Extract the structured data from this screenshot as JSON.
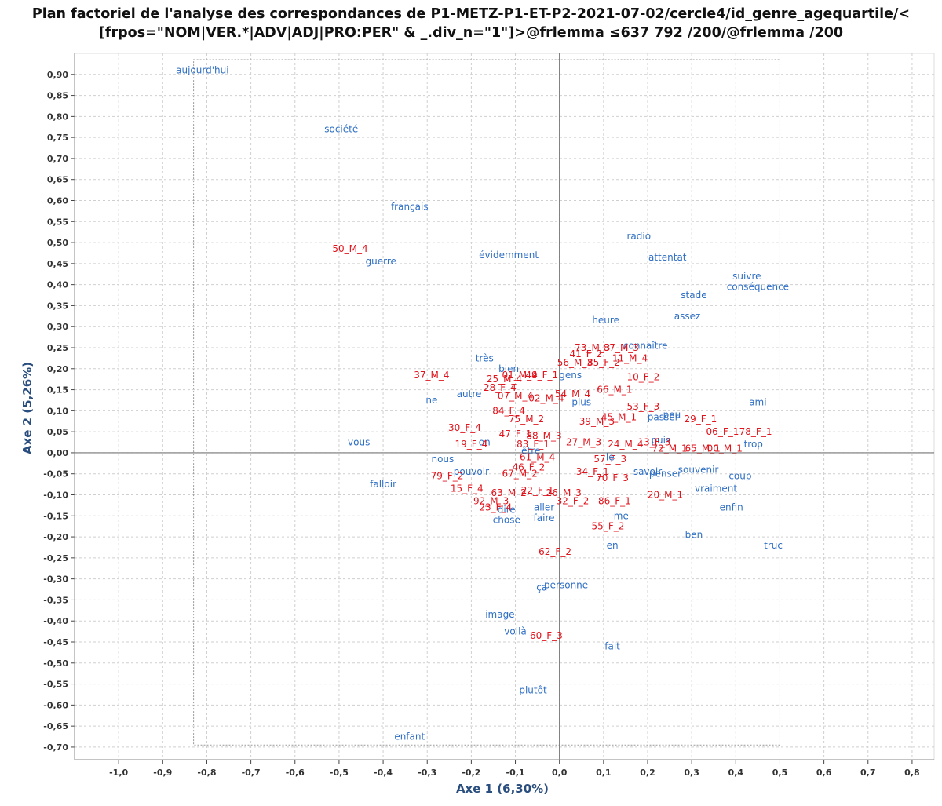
{
  "title": {
    "line1": "Plan factoriel de l'analyse des correspondances de P1-METZ-P1-ET-P2-2021-07-02/cercle4/id_genre_agequartile/<",
    "line2": "[frpos=\"NOM|VER.*|ADV|ADJ|PRO:PER\" & _.div_n=\"1\"]>@frlemma ≤637 792 /200/@frlemma /200"
  },
  "colors": {
    "words": "#2f6fc4",
    "rows": "#e0141c",
    "axis_title": "#2a4e7e",
    "grid": "#cfcfcf"
  },
  "chart_data": {
    "type": "scatter",
    "title": "Plan factoriel de l'analyse des correspondances de P1-METZ-P1-ET-P2-2021-07-02/cercle4/id_genre_agequartile/<[frpos=\"NOM|VER.*|ADV|ADJ|PRO:PER\" & _.div_n=\"1\"]>@frlemma ≤637 792 /200/@frlemma /200",
    "xlabel": "Axe 1 (6,30%)",
    "ylabel": "Axe 2 (5,26%)",
    "xlim": [
      -1.1,
      0.85
    ],
    "ylim": [
      -0.73,
      0.95
    ],
    "grid": true,
    "x_ticks": [
      "-1,0",
      "-0,9",
      "-0,8",
      "-0,7",
      "-0,6",
      "-0,5",
      "-0,4",
      "-0,3",
      "-0,2",
      "-0,1",
      "0,0",
      "0,1",
      "0,2",
      "0,3",
      "0,4",
      "0,5",
      "0,6",
      "0,7",
      "0,8"
    ],
    "y_ticks": [
      "0,90",
      "0,85",
      "0,80",
      "0,75",
      "0,70",
      "0,65",
      "0,60",
      "0,55",
      "0,50",
      "0,45",
      "0,40",
      "0,35",
      "0,30",
      "0,25",
      "0,20",
      "0,15",
      "0,10",
      "0,05",
      "0,00",
      "-0,05",
      "-0,10",
      "-0,15",
      "-0,20",
      "-0,25",
      "-0,30",
      "-0,35",
      "-0,40",
      "-0,45",
      "-0,50",
      "-0,55",
      "-0,60",
      "-0,65",
      "-0,70"
    ],
    "frame_rect": {
      "x_min": -0.83,
      "x_max": 0.5,
      "y_min": -0.695,
      "y_max": 0.935
    },
    "series": [
      {
        "name": "lemmas",
        "points": [
          {
            "label": "aujourd'hui",
            "x": -0.81,
            "y": 0.91
          },
          {
            "label": "société",
            "x": -0.495,
            "y": 0.77
          },
          {
            "label": "français",
            "x": -0.34,
            "y": 0.585
          },
          {
            "label": "guerre",
            "x": -0.405,
            "y": 0.455
          },
          {
            "label": "évidemment",
            "x": -0.115,
            "y": 0.47
          },
          {
            "label": "radio",
            "x": 0.18,
            "y": 0.515
          },
          {
            "label": "attentat",
            "x": 0.245,
            "y": 0.465
          },
          {
            "label": "suivre",
            "x": 0.425,
            "y": 0.42
          },
          {
            "label": "conséquence",
            "x": 0.45,
            "y": 0.395
          },
          {
            "label": "stade",
            "x": 0.305,
            "y": 0.375
          },
          {
            "label": "assez",
            "x": 0.29,
            "y": 0.325
          },
          {
            "label": "heure",
            "x": 0.105,
            "y": 0.315
          },
          {
            "label": "connaître",
            "x": 0.195,
            "y": 0.255
          },
          {
            "label": "très",
            "x": -0.17,
            "y": 0.225
          },
          {
            "label": "bien",
            "x": -0.115,
            "y": 0.2
          },
          {
            "label": "gens",
            "x": 0.025,
            "y": 0.185
          },
          {
            "label": "autre",
            "x": -0.205,
            "y": 0.14
          },
          {
            "label": "ne",
            "x": -0.29,
            "y": 0.125
          },
          {
            "label": "plus",
            "x": 0.05,
            "y": 0.12
          },
          {
            "label": "ami",
            "x": 0.45,
            "y": 0.12
          },
          {
            "label": "peu",
            "x": 0.255,
            "y": 0.09
          },
          {
            "label": "passer",
            "x": 0.235,
            "y": 0.085
          },
          {
            "label": "puis",
            "x": 0.23,
            "y": 0.03
          },
          {
            "label": "trop",
            "x": 0.44,
            "y": 0.02
          },
          {
            "label": "vous",
            "x": -0.455,
            "y": 0.025
          },
          {
            "label": "on",
            "x": -0.17,
            "y": 0.025
          },
          {
            "label": "être",
            "x": -0.065,
            "y": 0.005
          },
          {
            "label": "le",
            "x": 0.115,
            "y": -0.01
          },
          {
            "label": "nous",
            "x": -0.265,
            "y": -0.015
          },
          {
            "label": "pouvoir",
            "x": -0.2,
            "y": -0.045
          },
          {
            "label": "savoir",
            "x": 0.2,
            "y": -0.045
          },
          {
            "label": "penser",
            "x": 0.24,
            "y": -0.05
          },
          {
            "label": "souvenir",
            "x": 0.315,
            "y": -0.04
          },
          {
            "label": "coup",
            "x": 0.41,
            "y": -0.055
          },
          {
            "label": "falloir",
            "x": -0.4,
            "y": -0.075
          },
          {
            "label": "vraiment",
            "x": 0.355,
            "y": -0.085
          },
          {
            "label": "enfin",
            "x": 0.39,
            "y": -0.13
          },
          {
            "label": "dire",
            "x": -0.12,
            "y": -0.135
          },
          {
            "label": "aller",
            "x": -0.035,
            "y": -0.13
          },
          {
            "label": "faire",
            "x": -0.035,
            "y": -0.155
          },
          {
            "label": "me",
            "x": 0.14,
            "y": -0.15
          },
          {
            "label": "chose",
            "x": -0.12,
            "y": -0.16
          },
          {
            "label": "ben",
            "x": 0.305,
            "y": -0.195
          },
          {
            "label": "en",
            "x": 0.12,
            "y": -0.22
          },
          {
            "label": "truc",
            "x": 0.485,
            "y": -0.22
          },
          {
            "label": "ça",
            "x": -0.04,
            "y": -0.32
          },
          {
            "label": "personne",
            "x": 0.015,
            "y": -0.315
          },
          {
            "label": "image",
            "x": -0.135,
            "y": -0.385
          },
          {
            "label": "voilà",
            "x": -0.1,
            "y": -0.425
          },
          {
            "label": "fait",
            "x": 0.12,
            "y": -0.46
          },
          {
            "label": "plutôt",
            "x": -0.06,
            "y": -0.565
          },
          {
            "label": "enfant",
            "x": -0.34,
            "y": -0.675
          }
        ]
      },
      {
        "name": "id_genre_agequartile",
        "points": [
          {
            "label": "50_M_4",
            "x": -0.475,
            "y": 0.485
          },
          {
            "label": "37_M_4",
            "x": -0.29,
            "y": 0.185
          },
          {
            "label": "73_M_3",
            "x": 0.075,
            "y": 0.25
          },
          {
            "label": "87_M_3",
            "x": 0.14,
            "y": 0.25
          },
          {
            "label": "41_F_2",
            "x": 0.06,
            "y": 0.235
          },
          {
            "label": "11_M_4",
            "x": 0.16,
            "y": 0.225
          },
          {
            "label": "56_M_3",
            "x": 0.035,
            "y": 0.215
          },
          {
            "label": "85_F_2",
            "x": 0.1,
            "y": 0.215
          },
          {
            "label": "01_M_4",
            "x": -0.09,
            "y": 0.185
          },
          {
            "label": "49_F_1",
            "x": -0.04,
            "y": 0.185
          },
          {
            "label": "25_M_4",
            "x": -0.125,
            "y": 0.175
          },
          {
            "label": "28_F_4",
            "x": -0.135,
            "y": 0.155
          },
          {
            "label": "10_F_2",
            "x": 0.19,
            "y": 0.18
          },
          {
            "label": "66_M_1",
            "x": 0.125,
            "y": 0.15
          },
          {
            "label": "07_M_4",
            "x": -0.1,
            "y": 0.135
          },
          {
            "label": "02_M_4",
            "x": -0.03,
            "y": 0.13
          },
          {
            "label": "54_M_4",
            "x": 0.03,
            "y": 0.14
          },
          {
            "label": "53_F_3",
            "x": 0.19,
            "y": 0.11
          },
          {
            "label": "84_F_4",
            "x": -0.115,
            "y": 0.1
          },
          {
            "label": "75_M_2",
            "x": -0.075,
            "y": 0.08
          },
          {
            "label": "45_M_1",
            "x": 0.135,
            "y": 0.085
          },
          {
            "label": "39_M_3",
            "x": 0.085,
            "y": 0.075
          },
          {
            "label": "29_F_1",
            "x": 0.32,
            "y": 0.08
          },
          {
            "label": "30_F_4",
            "x": -0.215,
            "y": 0.06
          },
          {
            "label": "47_F_1",
            "x": -0.1,
            "y": 0.045
          },
          {
            "label": "88_M_3",
            "x": -0.035,
            "y": 0.04
          },
          {
            "label": "06_F_1",
            "x": 0.37,
            "y": 0.05
          },
          {
            "label": "78_F_1",
            "x": 0.445,
            "y": 0.05
          },
          {
            "label": "19_F_4",
            "x": -0.2,
            "y": 0.02
          },
          {
            "label": "83_F_1",
            "x": -0.06,
            "y": 0.02
          },
          {
            "label": "27_M_3",
            "x": 0.055,
            "y": 0.025
          },
          {
            "label": "24_M_4",
            "x": 0.15,
            "y": 0.02
          },
          {
            "label": "13_F_3",
            "x": 0.215,
            "y": 0.025
          },
          {
            "label": "72_M_1",
            "x": 0.25,
            "y": 0.01
          },
          {
            "label": "65_M_1",
            "x": 0.325,
            "y": 0.01
          },
          {
            "label": "00_M_1",
            "x": 0.375,
            "y": 0.01
          },
          {
            "label": "61_M_4",
            "x": -0.05,
            "y": -0.01
          },
          {
            "label": "57_F_3",
            "x": 0.115,
            "y": -0.015
          },
          {
            "label": "46_F_2",
            "x": -0.07,
            "y": -0.035
          },
          {
            "label": "67_M_2",
            "x": -0.09,
            "y": -0.05
          },
          {
            "label": "34_F_1",
            "x": 0.075,
            "y": -0.045
          },
          {
            "label": "70_F_3",
            "x": 0.12,
            "y": -0.06
          },
          {
            "label": "79_F_2",
            "x": -0.255,
            "y": -0.055
          },
          {
            "label": "15_F_4",
            "x": -0.21,
            "y": -0.085
          },
          {
            "label": "63_M_2",
            "x": -0.115,
            "y": -0.095
          },
          {
            "label": "22_F_1",
            "x": -0.05,
            "y": -0.09
          },
          {
            "label": "26_M_3",
            "x": 0.01,
            "y": -0.095
          },
          {
            "label": "32_F_2",
            "x": 0.03,
            "y": -0.115
          },
          {
            "label": "86_F_1",
            "x": 0.125,
            "y": -0.115
          },
          {
            "label": "20_M_1",
            "x": 0.24,
            "y": -0.1
          },
          {
            "label": "92_M_3",
            "x": -0.155,
            "y": -0.115
          },
          {
            "label": "23_F_4",
            "x": -0.145,
            "y": -0.13
          },
          {
            "label": "55_F_2",
            "x": 0.11,
            "y": -0.175
          },
          {
            "label": "62_F_2",
            "x": -0.01,
            "y": -0.235
          },
          {
            "label": "60_F_3",
            "x": -0.03,
            "y": -0.435
          }
        ]
      }
    ]
  }
}
